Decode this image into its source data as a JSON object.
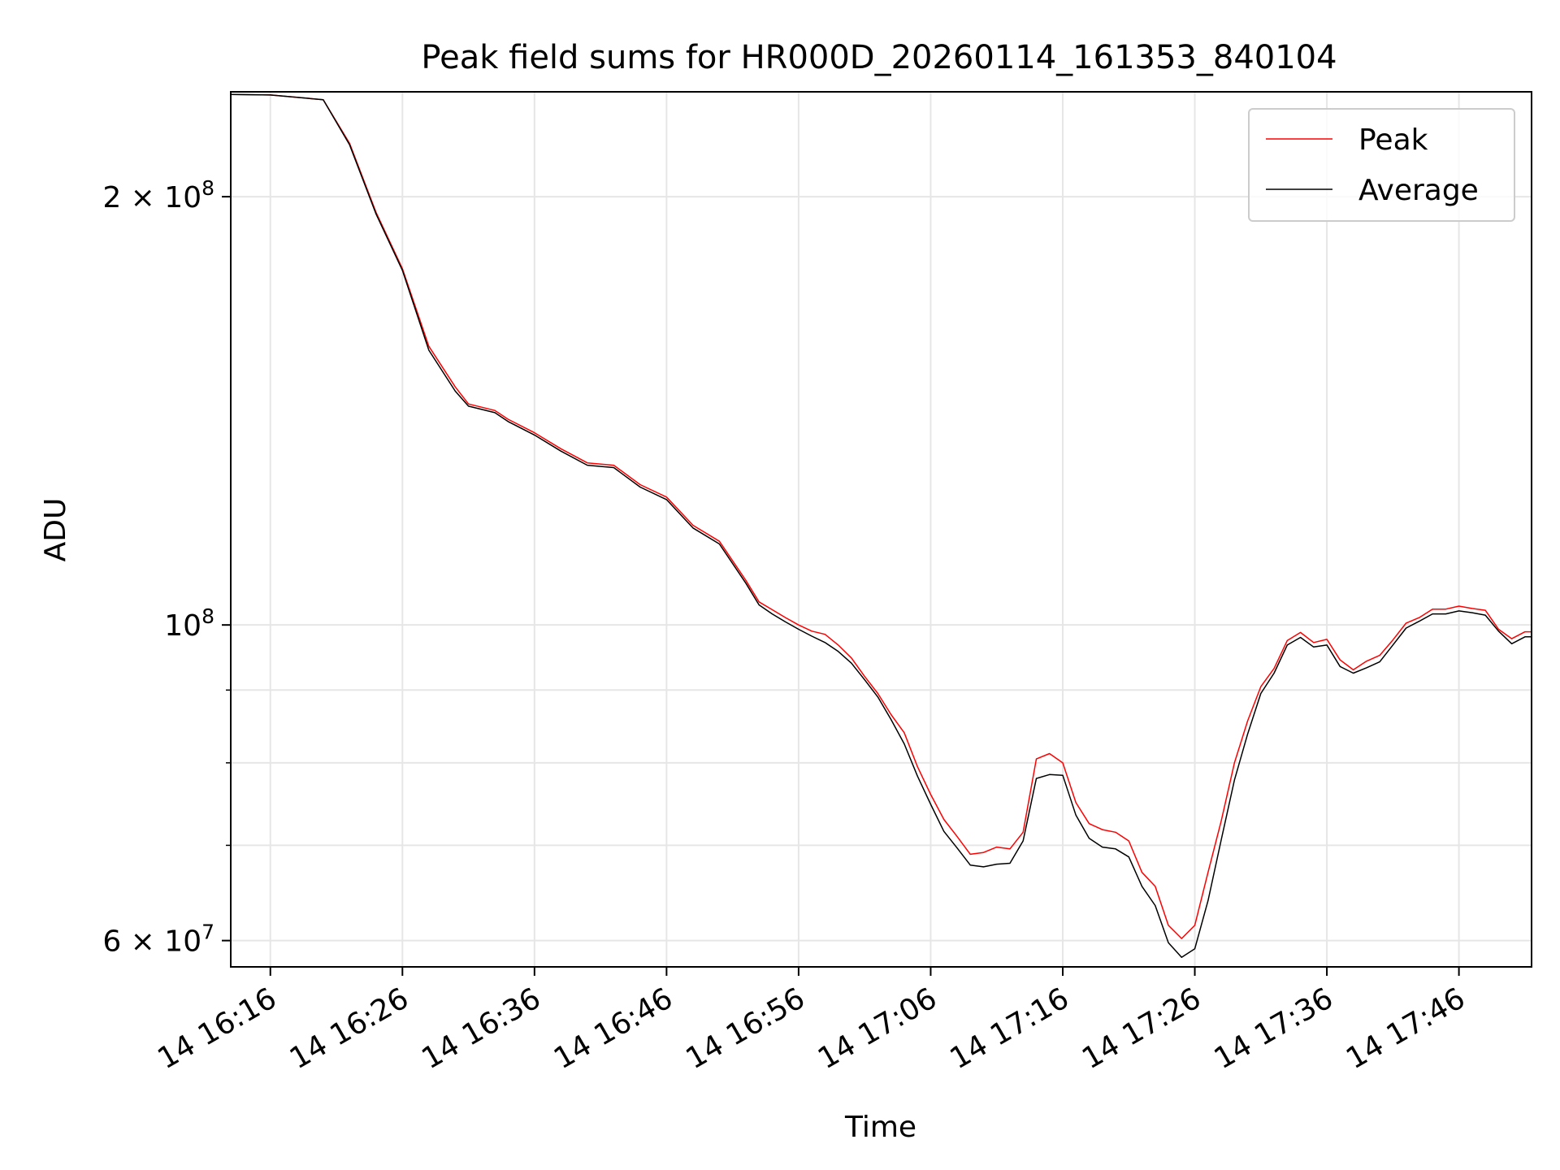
{
  "chart_data": {
    "type": "line",
    "title": "Peak field sums for HR000D_20260114_161353_840104",
    "xlabel": "Time",
    "ylabel": "ADU",
    "x_unit": "minutes",
    "xlim": [
      "14 16:13:00",
      "14 17:51:30"
    ],
    "ylim": [
      57500000,
      237000000
    ],
    "y_scale": "log",
    "grid": true,
    "legend_position": "top-right",
    "x_ticks": [
      "14 16:16",
      "14 16:26",
      "14 16:36",
      "14 16:46",
      "14 16:56",
      "14 17:06",
      "14 17:16",
      "14 17:26",
      "14 17:36",
      "14 17:46"
    ],
    "y_major_ticks": [
      {
        "value": 200000000,
        "mantissa": "2",
        "exponent": "8"
      },
      {
        "value": 100000000,
        "mantissa": "",
        "exponent": "8"
      },
      {
        "value": 60000000,
        "mantissa": "6",
        "exponent": "7"
      }
    ],
    "y_minor_ticks": [
      70000000,
      80000000,
      90000000
    ],
    "x": [
      "14 16:13:00",
      "14 16:16:00",
      "14 16:20:00",
      "14 16:22:00",
      "14 16:24:00",
      "14 16:26:00",
      "14 16:28:00",
      "14 16:30:00",
      "14 16:31:00",
      "14 16:33:00",
      "14 16:34:00",
      "14 16:36:00",
      "14 16:38:00",
      "14 16:40:00",
      "14 16:42:00",
      "14 16:44:00",
      "14 16:46:00",
      "14 16:48:00",
      "14 16:50:00",
      "14 16:52:00",
      "14 16:53:00",
      "14 16:54:00",
      "14 16:55:00",
      "14 16:56:00",
      "14 16:57:00",
      "14 16:58:00",
      "14 16:59:00",
      "14 17:00:00",
      "14 17:01:00",
      "14 17:02:00",
      "14 17:03:00",
      "14 17:04:00",
      "14 17:05:00",
      "14 17:06:00",
      "14 17:07:00",
      "14 17:08:00",
      "14 17:09:00",
      "14 17:10:00",
      "14 17:11:00",
      "14 17:12:00",
      "14 17:13:00",
      "14 17:14:00",
      "14 17:15:00",
      "14 17:16:00",
      "14 17:17:00",
      "14 17:18:00",
      "14 17:19:00",
      "14 17:20:00",
      "14 17:21:00",
      "14 17:22:00",
      "14 17:23:00",
      "14 17:24:00",
      "14 17:25:00",
      "14 17:26:00",
      "14 17:27:00",
      "14 17:28:00",
      "14 17:29:00",
      "14 17:30:00",
      "14 17:31:00",
      "14 17:32:00",
      "14 17:33:00",
      "14 17:34:00",
      "14 17:35:00",
      "14 17:36:00",
      "14 17:37:00",
      "14 17:38:00",
      "14 17:39:00",
      "14 17:40:00",
      "14 17:41:00",
      "14 17:42:00",
      "14 17:43:00",
      "14 17:44:00",
      "14 17:45:00",
      "14 17:46:00",
      "14 17:47:00",
      "14 17:48:00",
      "14 17:49:00",
      "14 17:50:00",
      "14 17:51:00",
      "14 17:51:30"
    ],
    "series": [
      {
        "name": "Peak",
        "color": "#ff0000",
        "values": [
          236000000,
          235800000,
          234000000,
          218000000,
          195000000,
          178000000,
          157000000,
          147000000,
          143000000,
          141500000,
          139500000,
          136500000,
          133000000,
          130000000,
          129500000,
          125500000,
          123000000,
          117500000,
          114500000,
          107500000,
          103800000,
          102500000,
          101200000,
          100000000,
          99000000,
          98500000,
          96800000,
          94800000,
          92000000,
          89500000,
          86500000,
          84000000,
          79500000,
          76000000,
          73000000,
          71000000,
          69000000,
          69200000,
          69800000,
          69600000,
          71500000,
          80500000,
          81200000,
          80000000,
          75000000,
          72500000,
          71800000,
          71500000,
          70500000,
          67000000,
          65500000,
          61500000,
          60200000,
          61500000,
          67000000,
          72800000,
          80000000,
          85600000,
          90500000,
          93200000,
          97500000,
          98800000,
          97200000,
          97700000,
          94500000,
          93000000,
          94300000,
          95200000,
          97600000,
          100300000,
          101200000,
          102600000,
          102600000,
          103100000,
          102700000,
          102400000,
          99300000,
          97800000,
          98900000,
          98900000
        ]
      },
      {
        "name": "Average",
        "color": "#000000",
        "values": [
          236000000,
          235800000,
          234000000,
          217500000,
          194500000,
          177500000,
          156000000,
          146000000,
          142500000,
          141000000,
          139000000,
          136000000,
          132500000,
          129500000,
          129000000,
          125000000,
          122500000,
          117000000,
          114000000,
          107000000,
          103300000,
          101800000,
          100500000,
          99300000,
          98200000,
          97200000,
          95800000,
          94000000,
          91500000,
          89000000,
          85800000,
          82500000,
          78300000,
          74800000,
          71600000,
          69700000,
          67800000,
          67600000,
          67900000,
          68000000,
          70500000,
          78000000,
          78500000,
          78400000,
          73500000,
          70800000,
          69800000,
          69600000,
          68700000,
          65500000,
          63500000,
          59800000,
          58400000,
          59200000,
          64000000,
          70600000,
          77800000,
          83800000,
          89500000,
          92500000,
          96800000,
          98000000,
          96500000,
          96800000,
          93500000,
          92500000,
          93300000,
          94200000,
          96800000,
          99500000,
          100600000,
          101800000,
          101800000,
          102300000,
          102000000,
          101600000,
          99000000,
          97000000,
          98100000,
          98100000
        ]
      }
    ]
  }
}
